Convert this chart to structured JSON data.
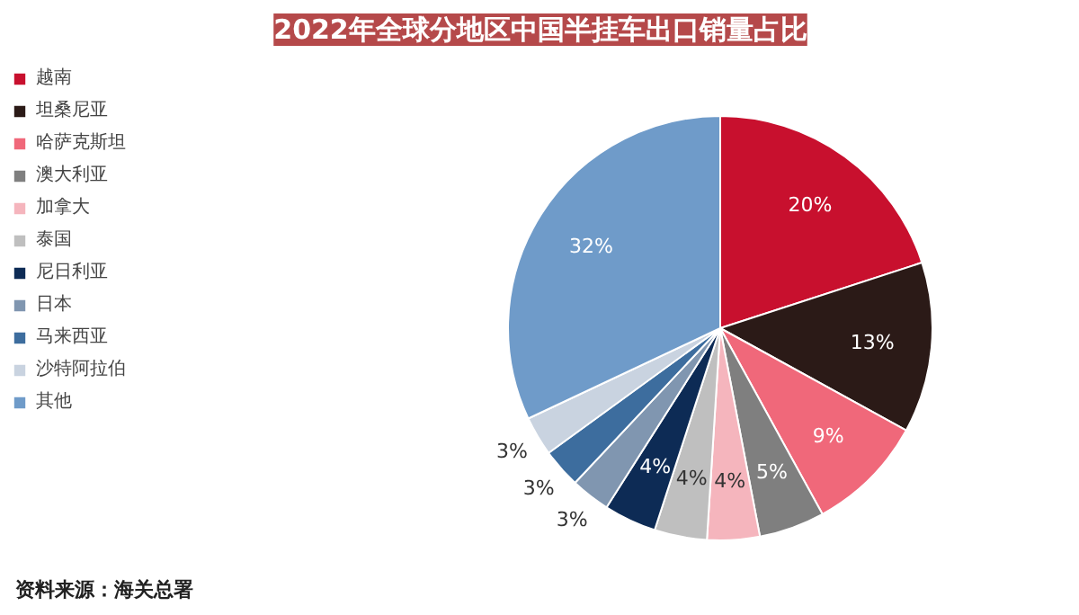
{
  "chart_data": {
    "type": "pie",
    "title": "2022年全球分地区中国半挂车出口销量占比",
    "categories": [
      "越南",
      "坦桑尼亚",
      "哈萨克斯坦",
      "澳大利亚",
      "加拿大",
      "泰国",
      "尼日利亚",
      "日本",
      "马来西亚",
      "沙特阿拉伯",
      "其他"
    ],
    "values": [
      20,
      13,
      9,
      5,
      4,
      4,
      4,
      3,
      3,
      3,
      32
    ],
    "colors": [
      "#c8102e",
      "#2b1a17",
      "#f0687a",
      "#7f7f7f",
      "#f5b5bd",
      "#bfbfbf",
      "#0d2b55",
      "#8096b0",
      "#3d6d9e",
      "#c9d3e0",
      "#6f9bc9"
    ],
    "value_labels": [
      "20%",
      "13%",
      "9%",
      "5%",
      "4%",
      "4%",
      "4%",
      "3%",
      "3%",
      "3%",
      "32%"
    ],
    "legend": "left",
    "annotations": [
      "资料来源：海关总署"
    ]
  }
}
